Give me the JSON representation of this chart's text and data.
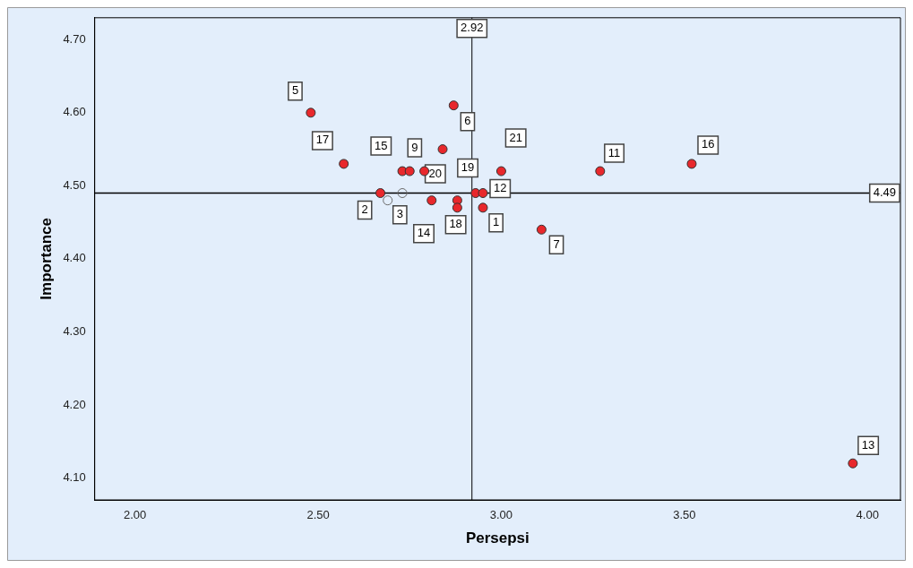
{
  "chart_data": {
    "type": "scatter",
    "xlabel": "Persepsi",
    "ylabel": "Importance",
    "xlim": [
      1.89,
      4.09
    ],
    "xticks": [
      {
        "value": 2,
        "label": "2.00"
      },
      {
        "value": 2.5,
        "label": "2.50"
      },
      {
        "value": 3,
        "label": "3.00"
      },
      {
        "value": 3.5,
        "label": "3.50"
      },
      {
        "value": 4,
        "label": "4.00"
      }
    ],
    "ylim": [
      4.07,
      4.73
    ],
    "yticks": [
      {
        "value": 4.1,
        "label": "4.10"
      },
      {
        "value": 4.2,
        "label": "4.20"
      },
      {
        "value": 4.3,
        "label": "4.30"
      },
      {
        "value": 4.4,
        "label": "4.40"
      },
      {
        "value": 4.5,
        "label": "4.50"
      },
      {
        "value": 4.6,
        "label": "4.60"
      },
      {
        "value": 4.7,
        "label": "4.70"
      }
    ],
    "series": [
      {
        "color": "#e8282c",
        "x": [
          2.48,
          2.57,
          2.87,
          2.84,
          2.73,
          2.75,
          2.79,
          3.0,
          2.67,
          2.81,
          2.88,
          2.88,
          2.93,
          2.95,
          2.95,
          3.11,
          3.27,
          3.52,
          3.96
        ],
        "values": [
          4.6,
          4.53,
          4.61,
          4.55,
          4.52,
          4.52,
          4.52,
          4.52,
          4.49,
          4.48,
          4.48,
          4.47,
          4.49,
          4.49,
          4.47,
          4.44,
          4.52,
          4.53,
          4.12
        ]
      },
      {
        "color": "#6a6a6a",
        "x": [
          2.69,
          2.73
        ],
        "values": [
          4.48,
          4.49
        ]
      }
    ],
    "annotations": [
      {
        "text": "5",
        "x": 2.48,
        "y": 4.6
      },
      {
        "text": "17",
        "x": 2.57,
        "y": 4.53
      },
      {
        "text": "6",
        "x": 2.87,
        "y": 4.61
      },
      {
        "text": "15",
        "x": 2.73,
        "y": 4.52
      },
      {
        "text": "9",
        "x": 2.75,
        "y": 4.52
      },
      {
        "text": "20",
        "x": 2.79,
        "y": 4.52
      },
      {
        "text": "21",
        "x": 3.0,
        "y": 4.52
      },
      {
        "text": "2",
        "x": 2.67,
        "y": 4.49
      },
      {
        "text": "3",
        "x": 2.69,
        "y": 4.48
      },
      {
        "text": "14",
        "x": 2.81,
        "y": 4.48
      },
      {
        "text": "18",
        "x": 2.88,
        "y": 4.47
      },
      {
        "text": "19",
        "x": 2.93,
        "y": 4.49
      },
      {
        "text": "12",
        "x": 2.95,
        "y": 4.49
      },
      {
        "text": "1",
        "x": 2.95,
        "y": 4.47
      },
      {
        "text": "7",
        "x": 3.11,
        "y": 4.44
      },
      {
        "text": "11",
        "x": 3.27,
        "y": 4.52
      },
      {
        "text": "16",
        "x": 3.52,
        "y": 4.53
      },
      {
        "text": "13",
        "x": 3.96,
        "y": 4.12
      }
    ],
    "ref_lines": [
      {
        "axis": "x",
        "value": 2.92,
        "label": "2.92"
      },
      {
        "axis": "y",
        "value": 4.49,
        "label": "4.49"
      }
    ],
    "marker": "circle",
    "grid": false,
    "legend": false
  }
}
